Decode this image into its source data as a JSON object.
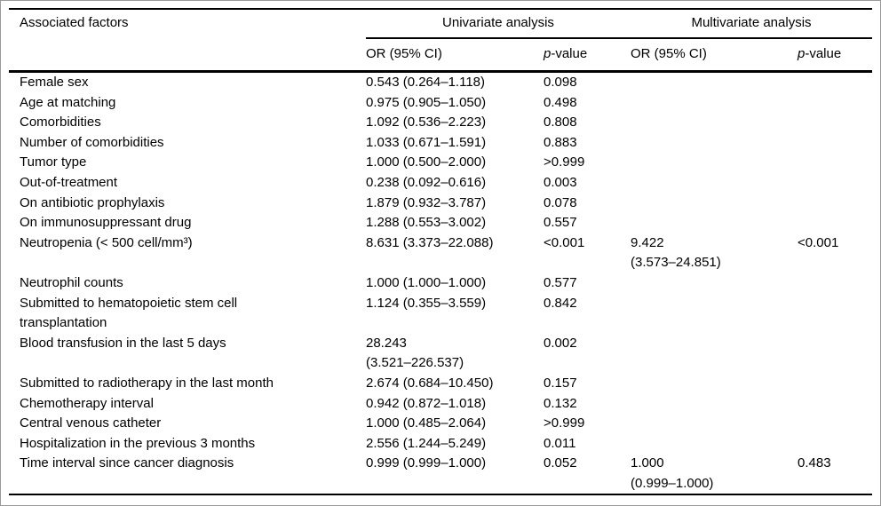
{
  "table": {
    "factor_header": "Associated factors",
    "groups": [
      {
        "label": "Univariate analysis"
      },
      {
        "label": "Multivariate analysis"
      }
    ],
    "or_label": "OR (95% CI)",
    "p_label_italic": "p",
    "p_label_rest": "-value",
    "rows": [
      {
        "factor": "Female sex",
        "u_or": "0.543 (0.264–1.118)",
        "u_p": "0.098",
        "m_or": "",
        "m_p": ""
      },
      {
        "factor": "Age at matching",
        "u_or": "0.975 (0.905–1.050)",
        "u_p": "0.498",
        "m_or": "",
        "m_p": ""
      },
      {
        "factor": "Comorbidities",
        "u_or": "1.092 (0.536–2.223)",
        "u_p": "0.808",
        "m_or": "",
        "m_p": ""
      },
      {
        "factor": "Number of comorbidities",
        "u_or": "1.033 (0.671–1.591)",
        "u_p": "0.883",
        "m_or": "",
        "m_p": ""
      },
      {
        "factor": "Tumor type",
        "u_or": "1.000 (0.500–2.000)",
        "u_p": ">0.999",
        "m_or": "",
        "m_p": ""
      },
      {
        "factor": "Out-of-treatment",
        "u_or": "0.238 (0.092–0.616)",
        "u_p": "0.003",
        "m_or": "",
        "m_p": ""
      },
      {
        "factor": "On antibiotic prophylaxis",
        "u_or": "1.879 (0.932–3.787)",
        "u_p": "0.078",
        "m_or": "",
        "m_p": ""
      },
      {
        "factor": "On immunosuppressant drug",
        "u_or": "1.288 (0.553–3.002)",
        "u_p": "0.557",
        "m_or": "",
        "m_p": ""
      },
      {
        "factor": "Neutropenia (< 500 cell/mm³)",
        "u_or": "8.631 (3.373–22.088)",
        "u_p": "<0.001",
        "m_or": "9.422\n(3.573–24.851)",
        "m_p": "<0.001"
      },
      {
        "factor": "Neutrophil counts",
        "u_or": "1.000 (1.000–1.000)",
        "u_p": "0.577",
        "m_or": "",
        "m_p": ""
      },
      {
        "factor": "Submitted to hematopoietic stem cell\ntransplantation",
        "u_or": "1.124 (0.355–3.559)",
        "u_p": "0.842",
        "m_or": "",
        "m_p": ""
      },
      {
        "factor": "Blood transfusion in the last 5 days",
        "u_or": "28.243\n(3.521–226.537)",
        "u_p": "0.002",
        "m_or": "",
        "m_p": ""
      },
      {
        "factor": "Submitted to radiotherapy in the last month",
        "u_or": "2.674 (0.684–10.450)",
        "u_p": "0.157",
        "m_or": "",
        "m_p": ""
      },
      {
        "factor": "Chemotherapy interval",
        "u_or": "0.942 (0.872–1.018)",
        "u_p": "0.132",
        "m_or": "",
        "m_p": ""
      },
      {
        "factor": "Central venous catheter",
        "u_or": "1.000 (0.485–2.064)",
        "u_p": ">0.999",
        "m_or": "",
        "m_p": ""
      },
      {
        "factor": "Hospitalization in the previous 3 months",
        "u_or": "2.556 (1.244–5.249)",
        "u_p": "0.011",
        "m_or": "",
        "m_p": ""
      },
      {
        "factor": "Time interval since cancer diagnosis",
        "u_or": "0.999 (0.999–1.000)",
        "u_p": "0.052",
        "m_or": "1.000\n(0.999–1.000)",
        "m_p": "0.483"
      }
    ]
  }
}
